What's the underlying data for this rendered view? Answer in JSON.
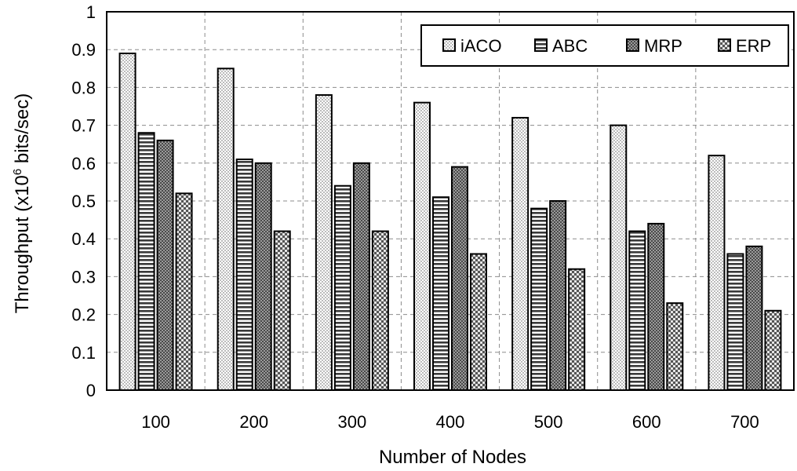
{
  "chart_data": {
    "type": "bar",
    "title": "",
    "xlabel": "Number of Nodes",
    "ylabel": "Throughput (x10",
    "ylabel_sup": "6",
    "ylabel_suffix": " bits/sec)",
    "ylim": [
      0,
      1
    ],
    "yticks": [
      "0",
      "0.1",
      "0.2",
      "0.3",
      "0.4",
      "0.5",
      "0.6",
      "0.7",
      "0.8",
      "0.9",
      "1"
    ],
    "categories": [
      "100",
      "200",
      "300",
      "400",
      "500",
      "600",
      "700"
    ],
    "series": [
      {
        "name": "iACO",
        "values": [
          0.89,
          0.85,
          0.78,
          0.76,
          0.72,
          0.7,
          0.62
        ]
      },
      {
        "name": "ABC",
        "values": [
          0.68,
          0.61,
          0.54,
          0.51,
          0.48,
          0.42,
          0.36
        ]
      },
      {
        "name": "MRP",
        "values": [
          0.66,
          0.6,
          0.6,
          0.59,
          0.5,
          0.44,
          0.38
        ]
      },
      {
        "name": "ERP",
        "values": [
          0.52,
          0.42,
          0.42,
          0.36,
          0.32,
          0.23,
          0.21
        ]
      }
    ],
    "grid": true,
    "legend_position": "top-right",
    "colors": {
      "axis": "#000000",
      "grid": "#8c8c8c",
      "bar_stroke": "#000000",
      "background": "#ffffff"
    }
  }
}
